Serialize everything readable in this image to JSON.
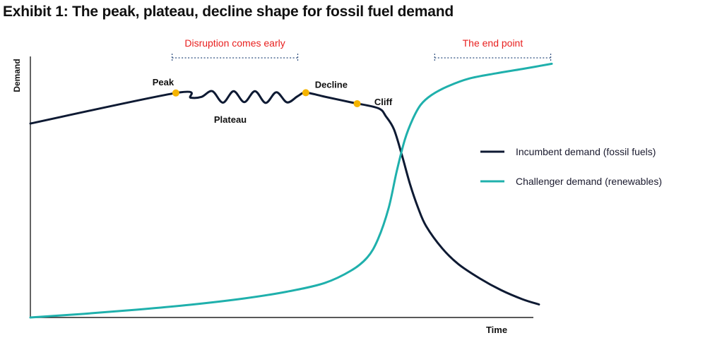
{
  "chart_data": {
    "type": "line",
    "title": "Exhibit 1: The peak, plateau, decline shape for fossil fuel demand",
    "xlabel": "Time",
    "ylabel": "Demand",
    "xlim": [
      0,
      100
    ],
    "ylim": [
      0,
      100
    ],
    "grid": false,
    "legend_placement": "right",
    "colors": {
      "incumbent": "#0e1a33",
      "challenger": "#1fb0ac",
      "annotation": "#e8201f",
      "bracket": "#2f4f7f",
      "marker": "#f5b400",
      "text": "#111111"
    },
    "series": [
      {
        "name": "Incumbent demand (fossil fuels)",
        "x": [
          0,
          27.2,
          30,
          32,
          34,
          36,
          38,
          40,
          42,
          44,
          46,
          48,
          50,
          51.5,
          55,
          60,
          65,
          66.5,
          68,
          69.5,
          71,
          72.5,
          74,
          77,
          80,
          84,
          88,
          92,
          95.1
        ],
        "y": [
          74.3,
          86,
          84.2,
          84.5,
          86.7,
          82.3,
          86.7,
          82.5,
          86.7,
          82.2,
          86.3,
          82.4,
          84.8,
          86.1,
          84.6,
          82.4,
          80.2,
          77,
          72,
          62,
          51,
          42,
          35,
          26.5,
          20.5,
          15,
          10.5,
          7,
          5
        ]
      },
      {
        "name": "Challenger demand (renewables)",
        "x": [
          0,
          10,
          20,
          30,
          40,
          48,
          55,
          60,
          63,
          65,
          67,
          68.5,
          70,
          71.5,
          73,
          75,
          78,
          82,
          87,
          92,
          97.5
        ],
        "y": [
          0,
          1.4,
          3,
          4.9,
          7.3,
          9.9,
          13.2,
          18,
          23,
          30,
          42,
          56,
          68,
          76,
          81.5,
          85.2,
          88.5,
          91.5,
          93.5,
          95.2,
          97.2
        ]
      }
    ],
    "points": [
      {
        "label": "Peak",
        "x": 27.2,
        "y": 86
      },
      {
        "label": "Decline",
        "x": 51.5,
        "y": 86.1
      },
      {
        "label": "Cliff",
        "x": 61.1,
        "y": 81.9
      }
    ],
    "annotations": [
      {
        "text": "Plateau"
      },
      {
        "text": "Disruption comes early",
        "x_range": [
          26.5,
          50
        ]
      },
      {
        "text": "The end point",
        "x_range": [
          75.6,
          97.3
        ]
      }
    ]
  }
}
